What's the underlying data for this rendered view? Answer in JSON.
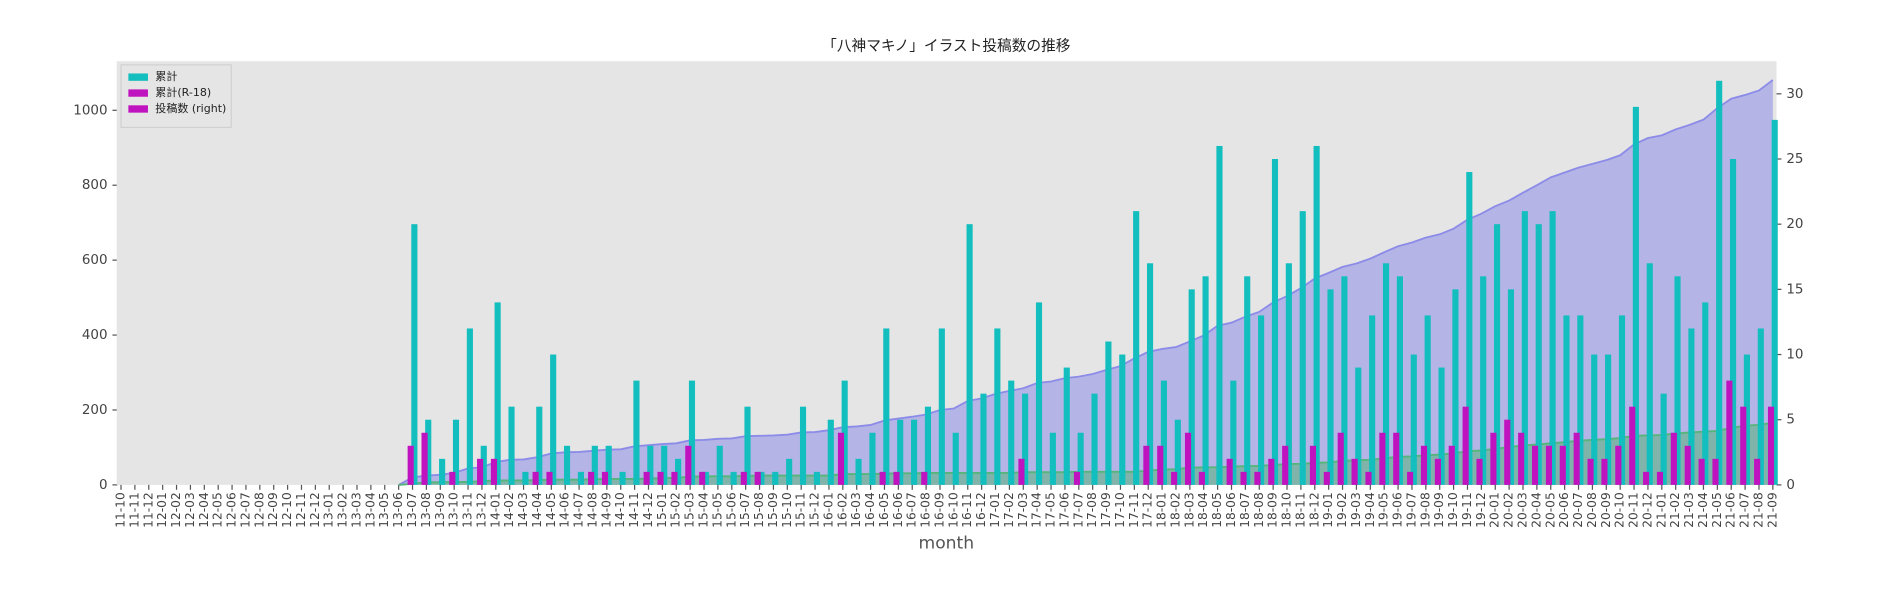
{
  "chart_data": {
    "type": "bar",
    "title": "「八神マキノ」イラスト投稿数の推移",
    "x_label": "month",
    "categories": [
      "11-10",
      "11-11",
      "11-12",
      "12-01",
      "12-02",
      "12-03",
      "12-04",
      "12-05",
      "12-06",
      "12-07",
      "12-08",
      "12-09",
      "12-10",
      "12-11",
      "12-12",
      "13-01",
      "13-02",
      "13-03",
      "13-04",
      "13-05",
      "13-06",
      "13-07",
      "13-08",
      "13-09",
      "13-10",
      "13-11",
      "13-12",
      "14-01",
      "14-02",
      "14-03",
      "14-04",
      "14-05",
      "14-06",
      "14-07",
      "14-08",
      "14-09",
      "14-10",
      "14-11",
      "14-12",
      "15-01",
      "15-02",
      "15-03",
      "15-04",
      "15-05",
      "15-06",
      "15-07",
      "15-08",
      "15-09",
      "15-10",
      "15-11",
      "15-12",
      "16-01",
      "16-02",
      "16-03",
      "16-04",
      "16-05",
      "16-06",
      "16-07",
      "16-08",
      "16-09",
      "16-10",
      "16-11",
      "16-12",
      "17-01",
      "17-02",
      "17-03",
      "17-04",
      "17-05",
      "17-06",
      "17-07",
      "17-08",
      "17-09",
      "17-10",
      "17-11",
      "17-12",
      "18-01",
      "18-02",
      "18-03",
      "18-04",
      "18-05",
      "18-06",
      "18-07",
      "18-08",
      "18-09",
      "18-10",
      "18-11",
      "18-12",
      "19-01",
      "19-02",
      "19-03",
      "19-04",
      "19-05",
      "19-06",
      "19-07",
      "19-08",
      "19-09",
      "19-10",
      "19-11",
      "19-12",
      "20-01",
      "20-02",
      "20-03",
      "20-04",
      "20-05",
      "20-06",
      "20-07",
      "20-08",
      "20-09",
      "20-10",
      "20-11",
      "20-12",
      "21-01",
      "21-02",
      "21-03",
      "21-04",
      "21-05",
      "21-06",
      "21-07",
      "21-08",
      "21-09"
    ],
    "series": [
      {
        "name": "累計",
        "kind": "area",
        "color": "#8c8ce8",
        "legend_color": "#13bebe",
        "values": [
          null,
          null,
          null,
          null,
          null,
          null,
          null,
          null,
          null,
          null,
          null,
          null,
          null,
          null,
          null,
          null,
          null,
          null,
          null,
          null,
          0,
          20,
          25,
          27,
          32,
          44,
          47,
          61,
          67,
          68,
          74,
          84,
          87,
          88,
          91,
          94,
          95,
          103,
          106,
          109,
          111,
          119,
          120,
          123,
          124,
          130,
          131,
          132,
          134,
          140,
          141,
          146,
          154,
          156,
          160,
          172,
          177,
          182,
          188,
          200,
          204,
          224,
          231,
          243,
          251,
          258,
          272,
          276,
          285,
          289,
          296,
          307,
          317,
          338,
          355,
          363,
          368,
          383,
          399,
          425,
          433,
          449,
          462,
          487,
          504,
          525,
          551,
          566,
          582,
          591,
          604,
          621,
          637,
          647,
          660,
          669,
          684,
          708,
          724,
          744,
          759,
          780,
          800,
          821,
          834,
          847,
          857,
          867,
          880,
          909,
          926,
          933,
          949,
          961,
          975,
          1006,
          1031,
          1041,
          1053,
          1081
        ]
      },
      {
        "name": "累計(R-18)",
        "kind": "area",
        "color": "#55b57a",
        "legend_color": "#c013c0",
        "values": [
          null,
          null,
          null,
          null,
          null,
          null,
          null,
          null,
          null,
          null,
          null,
          null,
          null,
          null,
          null,
          null,
          null,
          null,
          null,
          null,
          0,
          3,
          7,
          7,
          8,
          8,
          10,
          12,
          12,
          12,
          13,
          14,
          14,
          14,
          15,
          16,
          16,
          16,
          17,
          18,
          19,
          22,
          23,
          23,
          23,
          24,
          25,
          25,
          25,
          25,
          25,
          25,
          29,
          29,
          29,
          30,
          31,
          31,
          32,
          32,
          32,
          32,
          32,
          32,
          32,
          34,
          34,
          34,
          34,
          35,
          35,
          35,
          35,
          35,
          38,
          41,
          42,
          46,
          47,
          47,
          49,
          50,
          51,
          53,
          56,
          56,
          59,
          60,
          64,
          66,
          67,
          71,
          75,
          76,
          79,
          81,
          84,
          90,
          92,
          96,
          101,
          105,
          108,
          111,
          114,
          118,
          120,
          122,
          125,
          131,
          132,
          133,
          137,
          140,
          142,
          144,
          152,
          158,
          160,
          166
        ]
      },
      {
        "name": "投稿数 (right)",
        "kind": "bar",
        "axis": "y2",
        "color": "#13bebe",
        "legend_color": "#c013c0",
        "values": [
          null,
          null,
          null,
          null,
          null,
          null,
          null,
          null,
          null,
          null,
          null,
          null,
          null,
          null,
          null,
          null,
          null,
          null,
          null,
          null,
          null,
          20,
          5,
          2,
          5,
          12,
          3,
          14,
          6,
          1,
          6,
          10,
          3,
          1,
          3,
          3,
          1,
          8,
          3,
          3,
          2,
          8,
          1,
          3,
          1,
          6,
          1,
          1,
          2,
          6,
          1,
          5,
          8,
          2,
          4,
          12,
          5,
          5,
          6,
          12,
          4,
          20,
          7,
          12,
          8,
          7,
          14,
          4,
          9,
          4,
          7,
          11,
          10,
          21,
          17,
          8,
          5,
          15,
          16,
          26,
          8,
          16,
          13,
          25,
          17,
          21,
          26,
          15,
          16,
          9,
          13,
          17,
          16,
          10,
          13,
          9,
          15,
          24,
          16,
          20,
          15,
          21,
          20,
          21,
          13,
          13,
          10,
          10,
          13,
          29,
          17,
          7,
          16,
          12,
          14,
          31,
          25,
          10,
          12,
          28
        ]
      },
      {
        "kind": "bar",
        "axis": "y2",
        "color": "#c013c0",
        "values": [
          null,
          null,
          null,
          null,
          null,
          null,
          null,
          null,
          null,
          null,
          null,
          null,
          null,
          null,
          null,
          null,
          null,
          null,
          null,
          null,
          null,
          3,
          4,
          0,
          1,
          0,
          2,
          2,
          0,
          0,
          1,
          1,
          0,
          0,
          1,
          1,
          0,
          0,
          1,
          1,
          1,
          3,
          1,
          0,
          0,
          1,
          1,
          0,
          0,
          0,
          0,
          0,
          4,
          0,
          0,
          1,
          1,
          0,
          1,
          0,
          0,
          0,
          0,
          0,
          0,
          2,
          0,
          0,
          0,
          1,
          0,
          0,
          0,
          0,
          3,
          3,
          1,
          4,
          1,
          0,
          2,
          1,
          1,
          2,
          3,
          0,
          3,
          1,
          4,
          2,
          1,
          4,
          4,
          1,
          3,
          2,
          3,
          6,
          2,
          4,
          5,
          4,
          3,
          3,
          3,
          4,
          2,
          2,
          3,
          6,
          1,
          1,
          4,
          3,
          2,
          2,
          8,
          6,
          2,
          6
        ]
      }
    ],
    "ylim": [
      0,
      1131
    ],
    "yticks": [
      0,
      200,
      400,
      600,
      800,
      1000
    ],
    "y2lim": [
      0,
      32.5
    ],
    "y2ticks": [
      0,
      5,
      10,
      15,
      20,
      25,
      30
    ],
    "grid": false,
    "legend": "upper left",
    "background": "#e5e5e5"
  }
}
